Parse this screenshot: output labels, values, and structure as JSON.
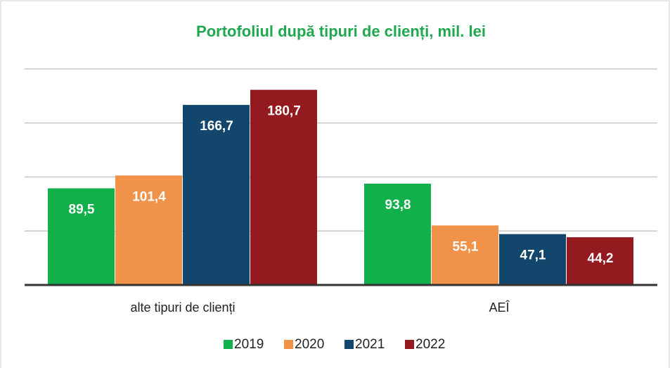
{
  "chart_data": {
    "type": "bar",
    "title": "Portofoliul după tipuri de clienți, mil. lei",
    "categories": [
      "alte tipuri de clienți",
      "AEÎ"
    ],
    "series": [
      {
        "name": "2019",
        "color": "#12b04b",
        "values": [
          89.5,
          93.8
        ],
        "value_labels": [
          "89,5",
          "93,8"
        ]
      },
      {
        "name": "2020",
        "color": "#f0924a",
        "values": [
          101.4,
          55.1
        ],
        "value_labels": [
          "101,4",
          "55,1"
        ]
      },
      {
        "name": "2021",
        "color": "#13466c",
        "values": [
          166.7,
          47.1
        ],
        "value_labels": [
          "166,7",
          "47,1"
        ]
      },
      {
        "name": "2022",
        "color": "#931a1e",
        "values": [
          180.7,
          44.2
        ],
        "value_labels": [
          "180,7",
          "44,2"
        ]
      }
    ],
    "ylim": [
      0,
      200
    ],
    "yticks": [
      0,
      50,
      100,
      150,
      200
    ],
    "grid": true,
    "legend": "bottom"
  }
}
